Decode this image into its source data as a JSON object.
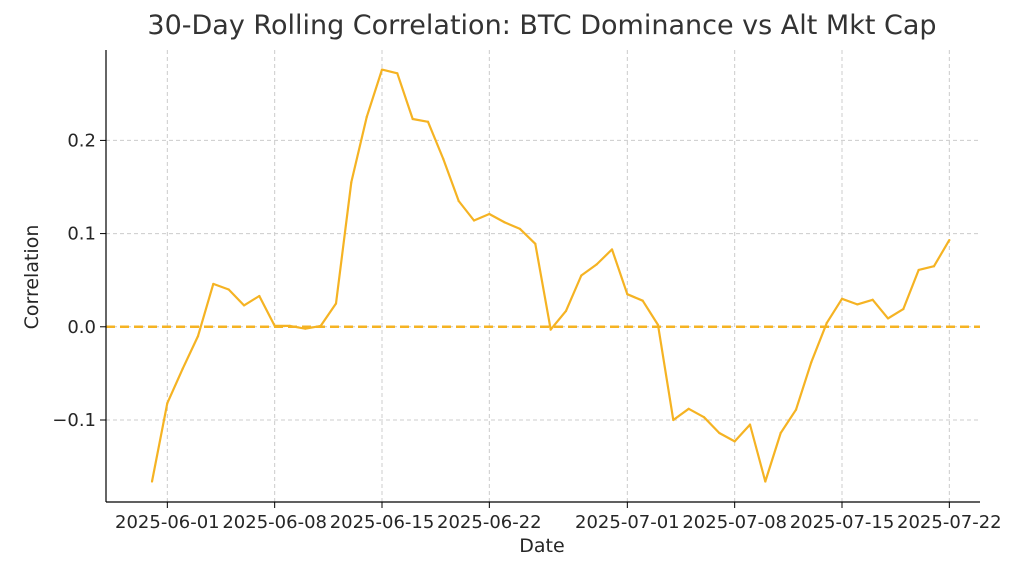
{
  "chart_data": {
    "type": "line",
    "title": "30-Day Rolling Correlation: BTC Dominance vs Alt Mkt Cap",
    "xlabel": "Date",
    "ylabel": "Correlation",
    "grid": true,
    "x_ticks": [
      "2025-06-01",
      "2025-06-08",
      "2025-06-15",
      "2025-06-22",
      "2025-07-01",
      "2025-07-08",
      "2025-07-15",
      "2025-07-22"
    ],
    "y_ticks": [
      -0.1,
      0.0,
      0.1,
      0.2
    ],
    "y_tick_labels": [
      "−0.1",
      "0.0",
      "0.1",
      "0.2"
    ],
    "xlim": [
      "2025-05-28",
      "2025-07-24"
    ],
    "ylim": [
      -0.188,
      0.297
    ],
    "reference_line": {
      "y": 0.0,
      "style": "dashed"
    },
    "colors": {
      "series": "#F5B323",
      "reference": "#F5B323",
      "grid": "#cccccc",
      "axis": "#000000"
    },
    "series": [
      {
        "x": [
          "2025-05-31",
          "2025-06-01",
          "2025-06-02",
          "2025-06-03",
          "2025-06-04",
          "2025-06-05",
          "2025-06-06",
          "2025-06-07",
          "2025-06-08",
          "2025-06-09",
          "2025-06-10",
          "2025-06-11",
          "2025-06-12",
          "2025-06-13",
          "2025-06-14",
          "2025-06-15",
          "2025-06-16",
          "2025-06-17",
          "2025-06-18",
          "2025-06-19",
          "2025-06-20",
          "2025-06-21",
          "2025-06-22",
          "2025-06-23",
          "2025-06-24",
          "2025-06-25",
          "2025-06-26",
          "2025-06-27",
          "2025-06-28",
          "2025-06-29",
          "2025-06-30",
          "2025-07-01",
          "2025-07-02",
          "2025-07-03",
          "2025-07-04",
          "2025-07-05",
          "2025-07-06",
          "2025-07-07",
          "2025-07-08",
          "2025-07-09",
          "2025-07-10",
          "2025-07-11",
          "2025-07-12",
          "2025-07-13",
          "2025-07-14",
          "2025-07-15",
          "2025-07-16",
          "2025-07-17",
          "2025-07-18",
          "2025-07-19",
          "2025-07-20",
          "2025-07-21",
          "2025-07-22"
        ],
        "values": [
          -0.166,
          -0.082,
          -0.045,
          -0.01,
          0.046,
          0.04,
          0.023,
          0.033,
          0.001,
          0.001,
          -0.002,
          0.001,
          0.025,
          0.155,
          0.225,
          0.276,
          0.272,
          0.223,
          0.22,
          0.18,
          0.135,
          0.114,
          0.121,
          0.112,
          0.105,
          0.089,
          -0.003,
          0.017,
          0.055,
          0.067,
          0.083,
          0.035,
          0.028,
          0.002,
          -0.1,
          -0.088,
          -0.097,
          -0.114,
          -0.123,
          -0.105,
          -0.166,
          -0.114,
          -0.089,
          -0.038,
          0.004,
          0.03,
          0.024,
          0.029,
          0.009,
          0.019,
          0.061,
          0.065,
          0.093
        ]
      }
    ]
  }
}
